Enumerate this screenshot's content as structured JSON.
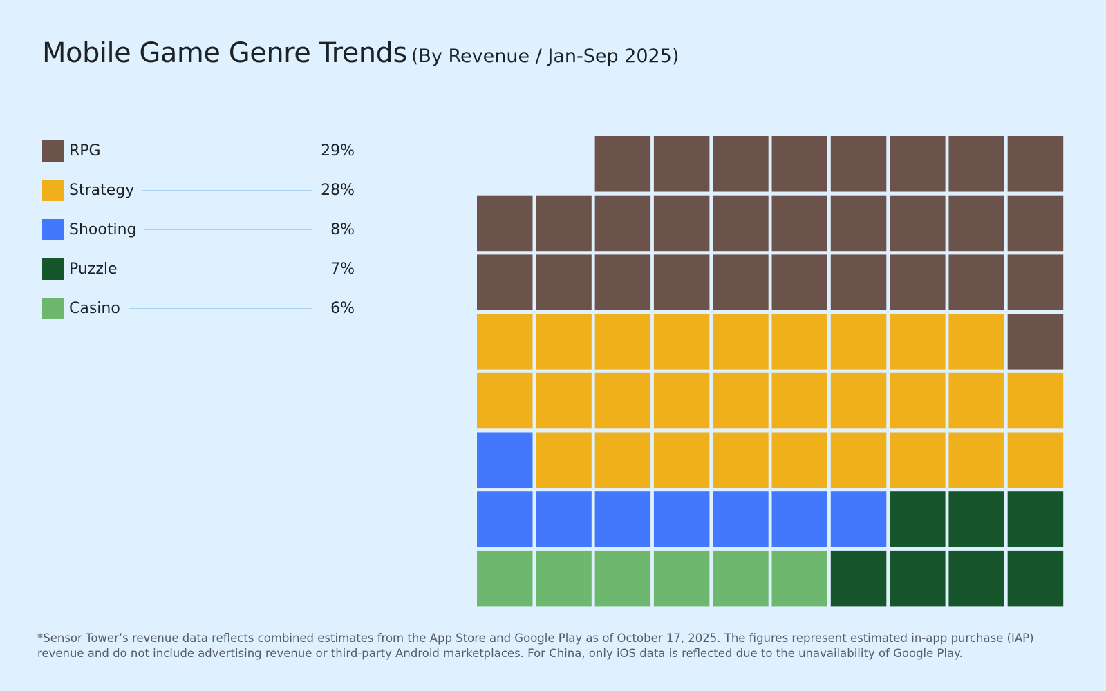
{
  "chart_data": {
    "type": "waffle",
    "title": "Mobile Game Genre Trends",
    "subtitle": "(By Revenue / Jan-Sep 2025)",
    "series": [
      {
        "name": "RPG",
        "color": "#6b534b",
        "values": [
          29
        ],
        "value_labels": [
          "29%"
        ]
      },
      {
        "name": "Strategy",
        "color": "#f0b01c",
        "values": [
          28
        ],
        "value_labels": [
          "28%"
        ]
      },
      {
        "name": "Shooting",
        "color": "#4378fc",
        "values": [
          8
        ],
        "value_labels": [
          "8%"
        ]
      },
      {
        "name": "Puzzle",
        "color": "#17552b",
        "values": [
          7
        ],
        "value_labels": [
          "7%"
        ]
      },
      {
        "name": "Casino",
        "color": "#6db86e",
        "values": [
          6
        ],
        "value_labels": [
          "6%"
        ]
      }
    ],
    "footnote": "*Sensor Tower’s revenue data reflects combined estimates from the App Store and Google Play as of October 17, 2025. The figures represent estimated in-app purchase (IAP) revenue and do not include advertising revenue or third-party Android marketplaces. For China, only iOS data is reflected due to the unavailability of Google Play."
  }
}
